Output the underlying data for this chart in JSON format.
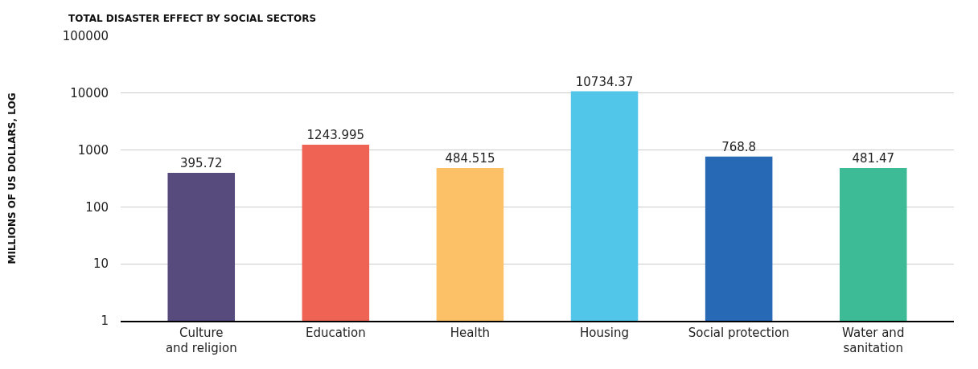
{
  "chart_data": {
    "type": "bar",
    "title": "TOTAL DISASTER EFFECT BY SOCIAL SECTORS",
    "ylabel": "MILLIONS OF US DOLLARS, LOG",
    "categories": [
      "Culture and religion",
      "Education",
      "Health",
      "Housing",
      "Social protection",
      "Water and sanitation"
    ],
    "values": [
      395.72,
      1243.995,
      484.515,
      10734.37,
      768.8,
      481.47
    ],
    "colors": [
      "#574a7c",
      "#ef6354",
      "#fcc067",
      "#52c6e8",
      "#2869b5",
      "#3dbb96"
    ],
    "log": true,
    "ylim": [
      1,
      100000
    ],
    "yticks": [
      1,
      10,
      100,
      1000,
      10000,
      100000
    ],
    "grid": "y",
    "data_labels": true
  }
}
